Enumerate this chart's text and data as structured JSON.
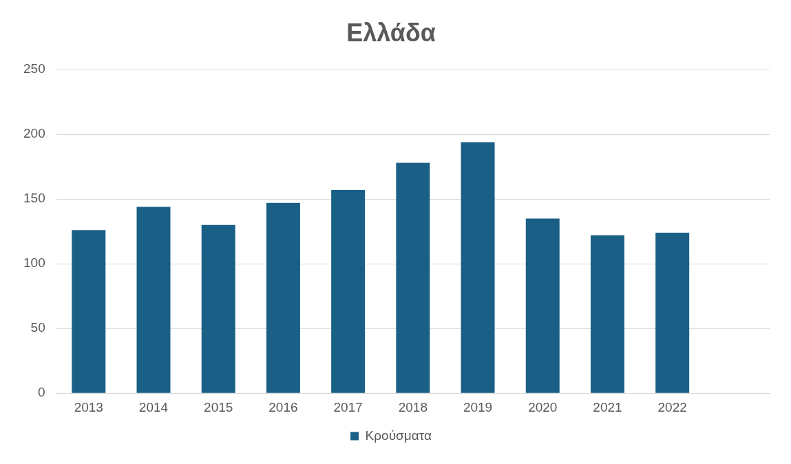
{
  "chart_data": {
    "type": "bar",
    "title": "Ελλάδα",
    "categories": [
      "2013",
      "2014",
      "2015",
      "2016",
      "2017",
      "2018",
      "2019",
      "2020",
      "2021",
      "2022",
      null
    ],
    "series": [
      {
        "name": "Κρούσματα",
        "color": "#1a5f86",
        "values": [
          126,
          144,
          130,
          147,
          157,
          178,
          194,
          135,
          122,
          124,
          null
        ]
      }
    ],
    "ylim": [
      0,
      250
    ],
    "yticks": [
      0,
      50,
      100,
      150,
      200,
      250
    ],
    "grid": "y",
    "legend": "bottom"
  }
}
